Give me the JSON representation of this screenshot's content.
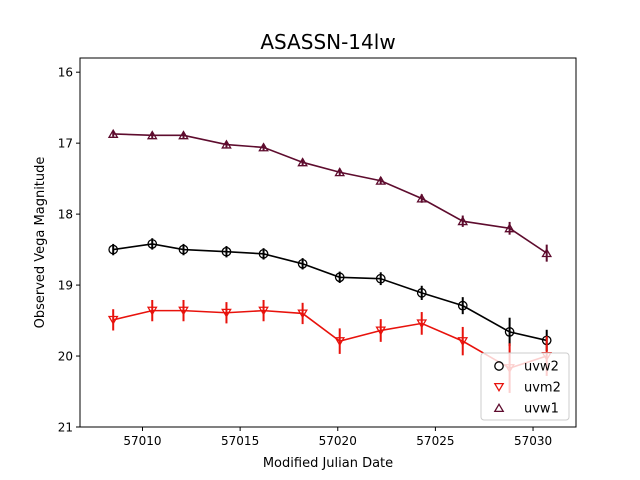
{
  "chart_data": {
    "type": "line",
    "title": "ASASSN-14lw",
    "xlabel": "Modified Julian Date",
    "ylabel": "Observed Vega Magnitude",
    "xlim": [
      57006.8,
      57032.2
    ],
    "ylim": [
      21,
      15.8
    ],
    "y_inverted": true,
    "xticks": [
      57010,
      57015,
      57020,
      57025,
      57030
    ],
    "yticks": [
      16,
      17,
      18,
      19,
      20,
      21
    ],
    "grid": false,
    "legend_position": "lower-right",
    "series": [
      {
        "name": "uvw2",
        "color": "#000000",
        "marker": "circle",
        "x": [
          57008.5,
          57010.5,
          57012.1,
          57014.3,
          57016.2,
          57018.2,
          57020.1,
          57022.2,
          57024.3,
          57026.4,
          57028.8,
          57030.7
        ],
        "y": [
          18.5,
          18.42,
          18.5,
          18.53,
          18.56,
          18.7,
          18.89,
          18.91,
          19.11,
          19.29,
          19.66,
          19.78
        ],
        "err": [
          0.08,
          0.08,
          0.08,
          0.08,
          0.08,
          0.08,
          0.08,
          0.09,
          0.1,
          0.12,
          0.2,
          0.15
        ]
      },
      {
        "name": "uvm2",
        "color": "#e8120c",
        "marker": "triangle-down",
        "x": [
          57008.5,
          57010.5,
          57012.1,
          57014.3,
          57016.2,
          57018.2,
          57020.1,
          57022.2,
          57024.3,
          57026.4,
          57028.8,
          57030.7
        ],
        "y": [
          19.49,
          19.36,
          19.36,
          19.39,
          19.36,
          19.4,
          19.79,
          19.64,
          19.54,
          19.79,
          20.17,
          20.0
        ],
        "err": [
          0.15,
          0.15,
          0.15,
          0.15,
          0.15,
          0.15,
          0.18,
          0.16,
          0.16,
          0.2,
          0.35,
          0.28
        ]
      },
      {
        "name": "uvw1",
        "color": "#5e0c2e",
        "marker": "triangle-up",
        "x": [
          57008.5,
          57010.5,
          57012.1,
          57014.3,
          57016.2,
          57018.2,
          57020.1,
          57022.2,
          57024.3,
          57026.4,
          57028.8,
          57030.7
        ],
        "y": [
          16.87,
          16.89,
          16.89,
          17.02,
          17.06,
          17.27,
          17.41,
          17.53,
          17.78,
          18.1,
          18.2,
          18.55
        ],
        "err": [
          0.04,
          0.04,
          0.04,
          0.04,
          0.05,
          0.05,
          0.05,
          0.05,
          0.06,
          0.08,
          0.09,
          0.12
        ]
      }
    ]
  }
}
